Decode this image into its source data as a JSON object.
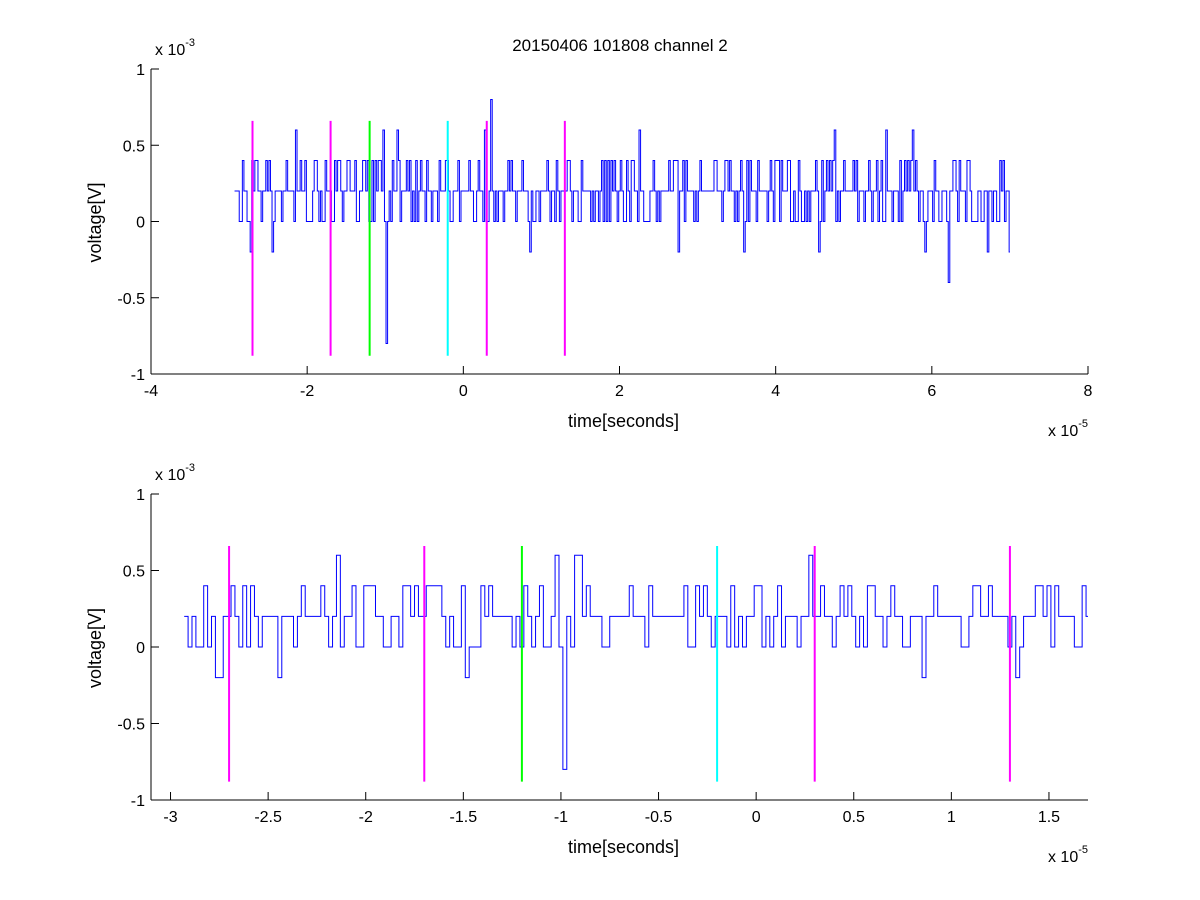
{
  "figure": {
    "title": "20150406 101808 channel 2"
  },
  "chart_data": [
    {
      "type": "line",
      "title": "20150406 101808 channel 2",
      "xlabel": "time[seconds]",
      "ylabel": "voltage[V]",
      "x_multiplier_base": "x 10",
      "x_multiplier_exp": "-5",
      "y_multiplier_base": "x 10",
      "y_multiplier_exp": "-3",
      "xlim": [
        -4,
        8
      ],
      "ylim": [
        -1,
        1
      ],
      "xticks": [
        -4,
        -2,
        0,
        2,
        4,
        6,
        8
      ],
      "xtick_labels": [
        "-4",
        "-2",
        "0",
        "2",
        "4",
        "6",
        "8"
      ],
      "yticks": [
        -1,
        -0.5,
        0,
        0.5,
        1
      ],
      "ytick_labels": [
        "-1",
        "-0.5",
        "0",
        "0.5",
        "1"
      ],
      "grid": false,
      "signal_color": "#0000ff",
      "signal_x_range": [
        -2.93,
        7.0
      ],
      "signal_levels": [
        -0.4,
        -0.2,
        0,
        0.2,
        0.4,
        0.6,
        0.8
      ],
      "spikes": [
        {
          "x": -2.72,
          "y": -0.2
        },
        {
          "x": -2.65,
          "y": 0.4
        },
        {
          "x": -2.45,
          "y": -0.2
        },
        {
          "x": -2.15,
          "y": 0.6
        },
        {
          "x": -1.02,
          "y": 0.6
        },
        {
          "x": -0.98,
          "y": -0.8
        },
        {
          "x": -0.85,
          "y": 0.6
        },
        {
          "x": 0.28,
          "y": 0.6
        },
        {
          "x": 0.35,
          "y": 0.8
        },
        {
          "x": 0.85,
          "y": -0.2
        },
        {
          "x": 2.25,
          "y": 0.6
        },
        {
          "x": 2.75,
          "y": -0.2
        },
        {
          "x": 3.6,
          "y": -0.2
        },
        {
          "x": 4.55,
          "y": -0.2
        },
        {
          "x": 4.75,
          "y": 0.6
        },
        {
          "x": 5.4,
          "y": 0.6
        },
        {
          "x": 5.75,
          "y": 0.6
        },
        {
          "x": 5.9,
          "y": -0.2
        },
        {
          "x": 6.2,
          "y": -0.4
        },
        {
          "x": 6.7,
          "y": -0.2
        },
        {
          "x": 6.98,
          "y": -0.2
        }
      ],
      "markers": [
        {
          "x": -2.7,
          "color": "#ff00ff",
          "ymin": -0.88,
          "ymax": 0.66
        },
        {
          "x": -1.7,
          "color": "#ff00ff",
          "ymin": -0.88,
          "ymax": 0.66
        },
        {
          "x": -1.2,
          "color": "#00ff00",
          "ymin": -0.88,
          "ymax": 0.66
        },
        {
          "x": -0.2,
          "color": "#00ffff",
          "ymin": -0.88,
          "ymax": 0.66
        },
        {
          "x": 0.3,
          "color": "#ff00ff",
          "ymin": -0.88,
          "ymax": 0.66
        },
        {
          "x": 1.3,
          "color": "#ff00ff",
          "ymin": -0.88,
          "ymax": 0.66
        }
      ]
    },
    {
      "type": "line",
      "title": "",
      "xlabel": "time[seconds]",
      "ylabel": "voltage[V]",
      "x_multiplier_base": "x 10",
      "x_multiplier_exp": "-5",
      "y_multiplier_base": "x 10",
      "y_multiplier_exp": "-3",
      "xlim": [
        -3.1,
        1.7
      ],
      "ylim": [
        -1,
        1
      ],
      "xticks": [
        -3,
        -2.5,
        -2,
        -1.5,
        -1,
        -0.5,
        0,
        0.5,
        1,
        1.5
      ],
      "xtick_labels": [
        "-3",
        "-2.5",
        "-2",
        "-1.5",
        "-1",
        "-0.5",
        "0",
        "0.5",
        "1",
        "1.5"
      ],
      "yticks": [
        -1,
        -0.5,
        0,
        0.5,
        1
      ],
      "ytick_labels": [
        "-1",
        "-0.5",
        "0",
        "0.5",
        "1"
      ],
      "grid": false,
      "signal_color": "#0000ff",
      "signal_x_range": [
        -2.93,
        1.7
      ],
      "signal_levels": [
        -0.2,
        0,
        0.2,
        0.4,
        0.6
      ],
      "spikes": [
        {
          "x": -2.78,
          "y": -0.2
        },
        {
          "x": -2.74,
          "y": -0.2
        },
        {
          "x": -2.62,
          "y": 0.4
        },
        {
          "x": -2.45,
          "y": -0.2
        },
        {
          "x": -2.15,
          "y": 0.6
        },
        {
          "x": -1.48,
          "y": -0.2
        },
        {
          "x": -1.02,
          "y": 0.6
        },
        {
          "x": -0.98,
          "y": -0.8
        },
        {
          "x": -0.93,
          "y": 0.6
        },
        {
          "x": -0.91,
          "y": 0.6
        },
        {
          "x": -0.65,
          "y": 0.4
        },
        {
          "x": -0.3,
          "y": 0.4
        },
        {
          "x": 0.28,
          "y": 0.6
        },
        {
          "x": 0.6,
          "y": 0.4
        },
        {
          "x": 0.85,
          "y": -0.2
        },
        {
          "x": 1.12,
          "y": 0.4
        },
        {
          "x": 1.33,
          "y": -0.2
        }
      ],
      "markers": [
        {
          "x": -2.7,
          "color": "#ff00ff",
          "ymin": -0.88,
          "ymax": 0.66
        },
        {
          "x": -1.7,
          "color": "#ff00ff",
          "ymin": -0.88,
          "ymax": 0.66
        },
        {
          "x": -1.2,
          "color": "#00ff00",
          "ymin": -0.88,
          "ymax": 0.66
        },
        {
          "x": -0.2,
          "color": "#00ffff",
          "ymin": -0.88,
          "ymax": 0.66
        },
        {
          "x": 0.3,
          "color": "#ff00ff",
          "ymin": -0.88,
          "ymax": 0.66
        },
        {
          "x": 1.3,
          "color": "#ff00ff",
          "ymin": -0.88,
          "ymax": 0.66
        }
      ]
    }
  ]
}
